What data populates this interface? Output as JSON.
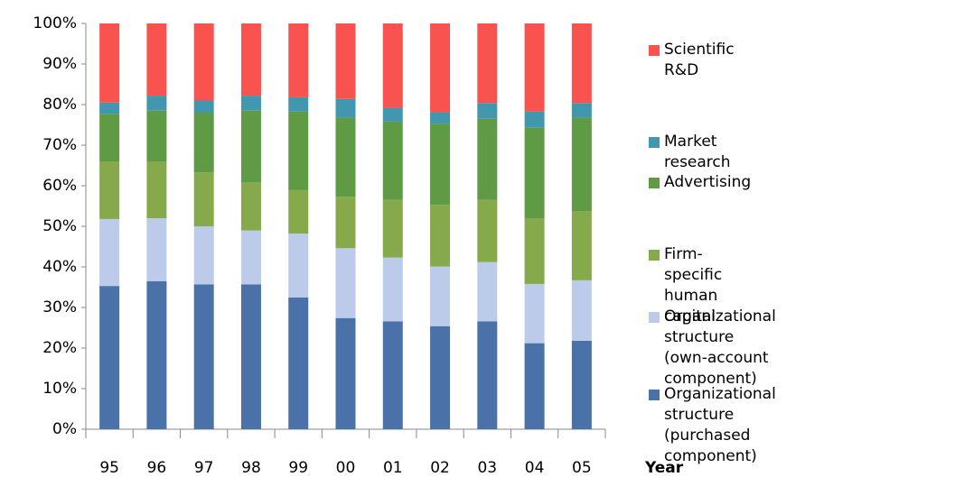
{
  "chart_data": {
    "type": "stacked-bar",
    "x_label": "Year",
    "categories": [
      "95",
      "96",
      "97",
      "98",
      "99",
      "00",
      "01",
      "02",
      "03",
      "04",
      "05"
    ],
    "series": [
      {
        "name": "Organizational structure\n(purchased component)",
        "color": "#4a72a8",
        "values": [
          35.3,
          36.5,
          35.7,
          35.7,
          32.5,
          27.4,
          26.6,
          25.4,
          26.6,
          21.2,
          21.8
        ]
      },
      {
        "name": "Organizational structure\n(own-account component)",
        "color": "#bccbea",
        "values": [
          16.5,
          15.5,
          14.3,
          13.3,
          15.7,
          17.2,
          15.7,
          14.7,
          14.6,
          14.6,
          14.9
        ]
      },
      {
        "name": "Firm-specific human capital",
        "color": "#86a94b",
        "values": [
          14.2,
          14.0,
          13.3,
          11.8,
          10.8,
          12.7,
          14.2,
          15.2,
          15.3,
          16.2,
          17.0
        ]
      },
      {
        "name": "Advertising",
        "color": "#5f9a45",
        "values": [
          11.7,
          12.5,
          14.7,
          17.7,
          19.3,
          19.5,
          19.3,
          20.0,
          20.0,
          22.3,
          23.1
        ]
      },
      {
        "name": "Market research",
        "color": "#4197ad",
        "values": [
          2.8,
          3.7,
          3.0,
          3.7,
          3.5,
          4.6,
          3.4,
          2.8,
          3.9,
          4.0,
          3.6
        ]
      },
      {
        "name": "Scientific R&D",
        "color": "#f9534f",
        "values": [
          19.5,
          17.8,
          19.0,
          17.8,
          18.2,
          18.6,
          20.8,
          21.9,
          19.6,
          21.7,
          19.6
        ]
      }
    ],
    "ylim": [
      0,
      100
    ],
    "yticks": [
      {
        "value": 0,
        "label": "0%"
      },
      {
        "value": 10,
        "label": "10%"
      },
      {
        "value": 20,
        "label": "20%"
      },
      {
        "value": 30,
        "label": "30%"
      },
      {
        "value": 40,
        "label": "40%"
      },
      {
        "value": 50,
        "label": "50%"
      },
      {
        "value": 60,
        "label": "60%"
      },
      {
        "value": 70,
        "label": "70%"
      },
      {
        "value": 80,
        "label": "80%"
      },
      {
        "value": 90,
        "label": "90%"
      },
      {
        "value": 100,
        "label": "100%"
      }
    ]
  }
}
